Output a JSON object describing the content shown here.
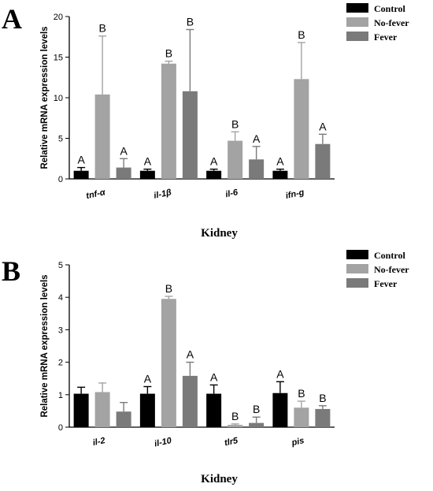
{
  "colors": {
    "Control": "#000000",
    "No-fever": "#a3a3a3",
    "Fever": "#7a7a7a"
  },
  "chart_data": [
    {
      "type": "bar",
      "panel": "A",
      "title": "",
      "xlabel": "Kidney",
      "ylabel": "Relative mRNA expression levels",
      "ylim": [
        0,
        20
      ],
      "yticks": [
        "0",
        "5",
        "10",
        "15",
        "20"
      ],
      "legend_position": "top-right",
      "categories": [
        "tnf-α",
        "il-1β",
        "il-6",
        "ifn-g"
      ],
      "series": [
        {
          "name": "Control",
          "values": [
            1.0,
            1.0,
            1.0,
            1.0
          ],
          "errors": [
            0.4,
            0.2,
            0.2,
            0.2
          ],
          "letters": [
            "A",
            "A",
            "A",
            "A"
          ]
        },
        {
          "name": "No-fever",
          "values": [
            10.4,
            14.2,
            4.7,
            12.3
          ],
          "errors": [
            7.2,
            0.3,
            1.1,
            4.5
          ],
          "letters": [
            "B",
            "B",
            "B",
            "B"
          ]
        },
        {
          "name": "Fever",
          "values": [
            1.4,
            10.8,
            2.4,
            4.3
          ],
          "errors": [
            1.1,
            7.6,
            1.6,
            1.2
          ],
          "letters": [
            "A",
            "B",
            "A",
            "A"
          ]
        }
      ]
    },
    {
      "type": "bar",
      "panel": "B",
      "title": "",
      "xlabel": "Kidney",
      "ylabel": "Relative mRNA expression levels",
      "ylim": [
        0,
        5
      ],
      "yticks": [
        "0",
        "1",
        "2",
        "3",
        "4",
        "5"
      ],
      "legend_position": "top-right",
      "categories": [
        "il-2",
        "il-10",
        "tlr5",
        "pis"
      ],
      "series": [
        {
          "name": "Control",
          "values": [
            1.03,
            1.03,
            1.03,
            1.05
          ],
          "errors": [
            0.2,
            0.22,
            0.27,
            0.35
          ],
          "letters": [
            "",
            "A",
            "A",
            "A"
          ]
        },
        {
          "name": "No-fever",
          "values": [
            1.08,
            3.95,
            0.07,
            0.6
          ],
          "errors": [
            0.28,
            0.08,
            0.03,
            0.2
          ],
          "letters": [
            "",
            "B",
            "B",
            "B"
          ]
        },
        {
          "name": "Fever",
          "values": [
            0.48,
            1.58,
            0.13,
            0.56
          ],
          "errors": [
            0.28,
            0.42,
            0.18,
            0.1
          ],
          "letters": [
            "",
            "A",
            "B",
            "B"
          ]
        }
      ]
    }
  ]
}
